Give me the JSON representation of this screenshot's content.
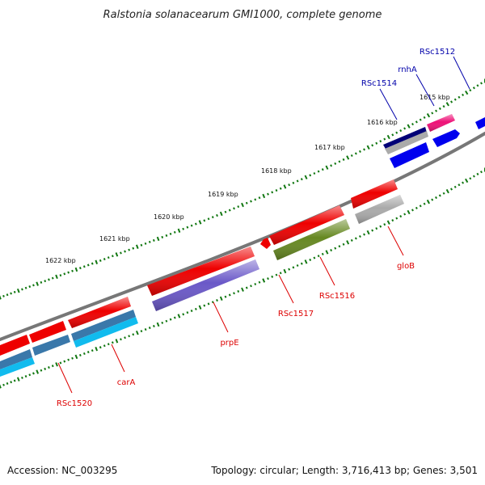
{
  "title": "Ralstonia solanacearum GMI1000, complete genome",
  "footer": {
    "accession": "Accession: NC_003295",
    "summary": "Topology: circular; Length: 3,716,413 bp; Genes: 3,501"
  },
  "ticks": [
    {
      "label": "1615 kbp"
    },
    {
      "label": "1616 kbp"
    },
    {
      "label": "1617 kbp"
    },
    {
      "label": "1618 kbp"
    },
    {
      "label": "1619 kbp"
    },
    {
      "label": "1620 kbp"
    },
    {
      "label": "1621 kbp"
    },
    {
      "label": "1622 kbp"
    }
  ],
  "gene_labels": [
    {
      "text": "RSc1512",
      "color": "#0000aa"
    },
    {
      "text": "rnhA",
      "color": "#0000aa"
    },
    {
      "text": "RSc1514",
      "color": "#0000aa"
    },
    {
      "text": "gloB",
      "color": "#dd0000"
    },
    {
      "text": "RSc1516",
      "color": "#dd0000"
    },
    {
      "text": "RSc1517",
      "color": "#dd0000"
    },
    {
      "text": "prpE",
      "color": "#dd0000"
    },
    {
      "text": "carA",
      "color": "#dd0000"
    },
    {
      "text": "RSc1520",
      "color": "#dd0000"
    }
  ],
  "colors": {
    "red": "#ee0000",
    "blue": "#0000ee",
    "navy": "#000077",
    "magenta": "#ee1177",
    "gray": "#aaaaaa",
    "purple": "#6a58c8",
    "olive": "#668822",
    "steel": "#3a78aa",
    "cyan": "#11bbee",
    "backbone": "#777777",
    "tick": "#117711"
  }
}
